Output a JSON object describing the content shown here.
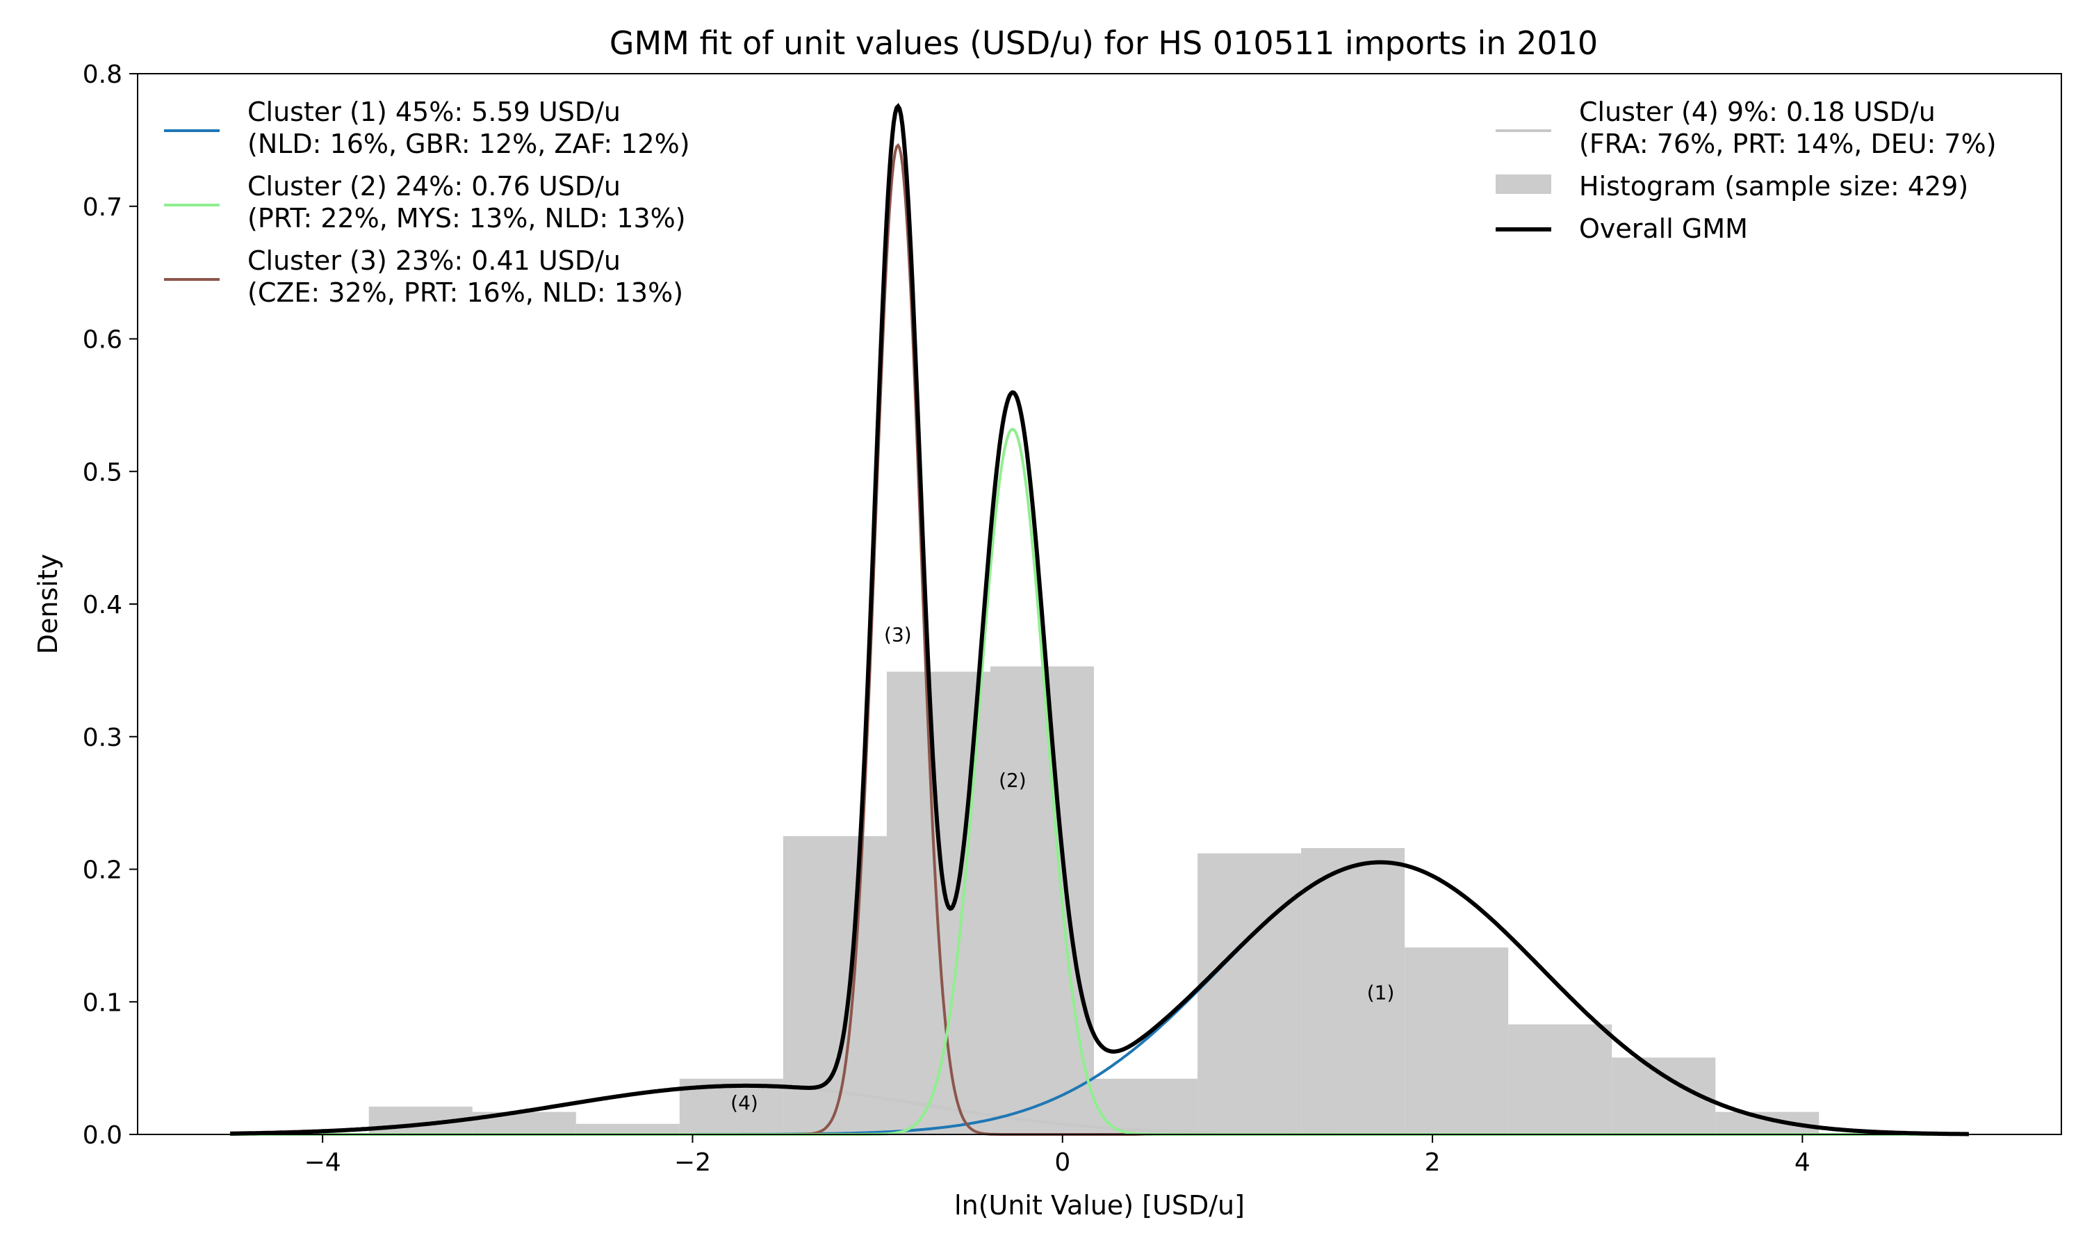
{
  "chart_data": {
    "type": "histogram+line",
    "title": "GMM fit of unit values (USD/u) for HS 010511 imports in 2010",
    "xlabel": "ln(Unit Value) [USD/u]",
    "ylabel": "Density",
    "xlim": [
      -5.0,
      5.4
    ],
    "ylim": [
      0,
      0.8
    ],
    "xticks": [
      -4,
      -2,
      0,
      2,
      4
    ],
    "xtick_labels": [
      "−4",
      "−2",
      "0",
      "2",
      "4"
    ],
    "yticks": [
      0.0,
      0.1,
      0.2,
      0.3,
      0.4,
      0.5,
      0.6,
      0.7,
      0.8
    ],
    "ytick_labels": [
      "0.0",
      "0.1",
      "0.2",
      "0.3",
      "0.4",
      "0.5",
      "0.6",
      "0.7",
      "0.8"
    ],
    "grid": false,
    "histogram": {
      "bin_edges": [
        -3.75,
        -3.19,
        -2.63,
        -2.07,
        -1.51,
        -0.95,
        -0.39,
        0.17,
        0.73,
        1.29,
        1.85,
        2.41,
        2.97,
        3.53,
        4.09
      ],
      "density": [
        0.021,
        0.017,
        0.008,
        0.042,
        0.225,
        0.349,
        0.353,
        0.042,
        0.212,
        0.216,
        0.141,
        0.083,
        0.058,
        0.017
      ],
      "color": "#cccccc"
    },
    "series": [
      {
        "name": "Cluster (1) 45%: 5.59 USD/u\n(NLD: 16%, GBR: 12%, ZAF: 12%)",
        "weight": 0.45,
        "mean": 1.72,
        "sd": 0.875,
        "color": "#1f77b4"
      },
      {
        "name": "Cluster (2) 24%: 0.76 USD/u\n(PRT: 22%, MYS: 13%, NLD: 13%)",
        "weight": 0.24,
        "mean": -0.27,
        "sd": 0.18,
        "color": "#90ee90"
      },
      {
        "name": "Cluster (3) 23%: 0.41 USD/u\n(CZE: 32%, PRT: 16%, NLD: 13%)",
        "weight": 0.23,
        "mean": -0.89,
        "sd": 0.123,
        "color": "#8c564b"
      },
      {
        "name": "Cluster (4) 9%: 0.18 USD/u\n(FRA: 76%, PRT: 14%, DEU: 7%)",
        "weight": 0.09,
        "mean": -1.72,
        "sd": 0.98,
        "color": "#c8c8c8"
      }
    ],
    "overall": {
      "name": "Overall GMM",
      "color": "#000000",
      "x_range": [
        -4.5,
        4.9
      ]
    },
    "annotations": [
      {
        "text": "(1)",
        "x": 1.72,
        "y": 0.102
      },
      {
        "text": "(2)",
        "x": -0.27,
        "y": 0.262
      },
      {
        "text": "(3)",
        "x": -0.89,
        "y": 0.372
      },
      {
        "text": "(4)",
        "x": -1.72,
        "y": 0.019
      }
    ],
    "legend": {
      "left": {
        "placement": "top-left",
        "entries": [
          {
            "lines": [
              "Cluster (1) 45%: 5.59 USD/u",
              "(NLD: 16%, GBR: 12%, ZAF: 12%)"
            ],
            "color": "#1f77b4",
            "kind": "line"
          },
          {
            "lines": [
              "Cluster (2) 24%: 0.76 USD/u",
              "(PRT: 22%, MYS: 13%, NLD: 13%)"
            ],
            "color": "#90ee90",
            "kind": "line"
          },
          {
            "lines": [
              "Cluster (3) 23%: 0.41 USD/u",
              "(CZE: 32%, PRT: 16%, NLD: 13%)"
            ],
            "color": "#8c564b",
            "kind": "line"
          }
        ]
      },
      "right": {
        "placement": "top-right",
        "entries": [
          {
            "lines": [
              "Cluster (4) 9%: 0.18 USD/u",
              "(FRA: 76%, PRT: 14%, DEU: 7%)"
            ],
            "color": "#c8c8c8",
            "kind": "line"
          },
          {
            "lines": [
              "Histogram (sample size: 429)"
            ],
            "color": "#cccccc",
            "kind": "patch"
          },
          {
            "lines": [
              "Overall GMM"
            ],
            "color": "#000000",
            "kind": "thickline"
          }
        ]
      }
    }
  }
}
